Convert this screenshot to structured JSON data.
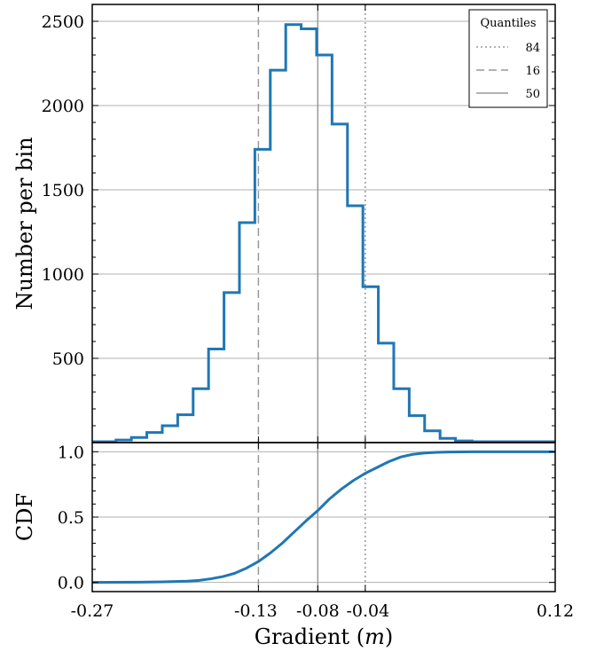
{
  "chart_data": [
    {
      "type": "histogram",
      "ylabel": "Number per bin",
      "ylim": [
        0,
        2600
      ],
      "yticks": [
        500,
        1000,
        1500,
        2000,
        2500
      ],
      "grid": true,
      "bin_edges": [
        -0.27,
        -0.25,
        -0.237,
        -0.224,
        -0.211,
        -0.198,
        -0.185,
        -0.172,
        -0.159,
        -0.146,
        -0.133,
        -0.12,
        -0.107,
        -0.094,
        -0.081,
        -0.068,
        -0.055,
        -0.042,
        -0.029,
        -0.016,
        -0.003,
        0.01,
        0.023,
        0.036,
        0.05,
        0.12
      ],
      "counts": [
        5,
        15,
        30,
        60,
        100,
        165,
        320,
        555,
        890,
        1305,
        1740,
        2210,
        2480,
        2455,
        2300,
        1890,
        1405,
        925,
        590,
        320,
        160,
        70,
        25,
        10,
        5
      ],
      "color": "#1f77b4",
      "legend": {
        "title": "Quantiles",
        "entries": [
          {
            "label": "84",
            "style": "dotted"
          },
          {
            "label": "16",
            "style": "dashed"
          },
          {
            "label": "50",
            "style": "solid"
          }
        ],
        "position": "top-right"
      },
      "quantiles": {
        "q16": -0.13,
        "q50": -0.08,
        "q84": -0.04
      },
      "quantile_color": "#999999"
    },
    {
      "type": "line",
      "ylabel": "CDF",
      "ylim": [
        -0.07,
        1.07
      ],
      "yticks": [
        0.0,
        0.5,
        1.0
      ],
      "ytick_labels": [
        "0.0",
        "0.5",
        "1.0"
      ],
      "xlabel": "Gradient (m)",
      "xlabel_text": "Gradient (",
      "xlabel_var": "m",
      "xlabel_close": ")",
      "xlim": [
        -0.27,
        0.12
      ],
      "xticks": [
        -0.27,
        -0.13,
        -0.08,
        -0.04,
        0.12
      ],
      "xtick_labels": [
        "-0.27",
        "-0.13",
        "-0.08",
        "-0.04",
        "0.12"
      ],
      "x": [
        -0.27,
        -0.23,
        -0.21,
        -0.19,
        -0.18,
        -0.17,
        -0.16,
        -0.15,
        -0.14,
        -0.13,
        -0.12,
        -0.11,
        -0.1,
        -0.09,
        -0.08,
        -0.07,
        -0.06,
        -0.05,
        -0.04,
        -0.03,
        -0.02,
        -0.01,
        0.0,
        0.01,
        0.02,
        0.03,
        0.05,
        0.12
      ],
      "y": [
        0.0,
        0.002,
        0.005,
        0.01,
        0.016,
        0.028,
        0.045,
        0.07,
        0.11,
        0.16,
        0.225,
        0.3,
        0.385,
        0.47,
        0.55,
        0.64,
        0.715,
        0.78,
        0.835,
        0.88,
        0.925,
        0.96,
        0.98,
        0.99,
        0.995,
        0.998,
        1.0,
        1.0
      ],
      "grid": true,
      "color": "#1f77b4"
    }
  ]
}
